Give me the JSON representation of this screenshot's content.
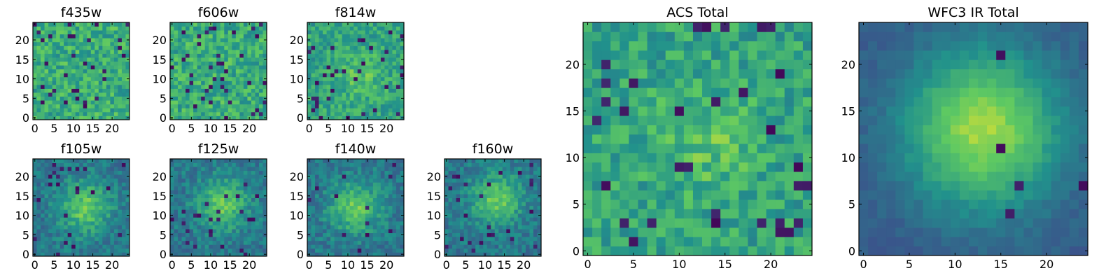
{
  "chart_data": [
    {
      "type": "heatmap",
      "title": "f435w",
      "grid_size": 25,
      "pattern": "noise",
      "center": [
        12,
        12
      ],
      "xlim": [
        0,
        24
      ],
      "ylim": [
        0,
        24
      ],
      "xticks": [
        "0",
        "5",
        "10",
        "15",
        "20"
      ],
      "yticks": [
        "0",
        "5",
        "10",
        "15",
        "20"
      ]
    },
    {
      "type": "heatmap",
      "title": "f606w",
      "grid_size": 25,
      "pattern": "noise",
      "center": [
        12,
        12
      ],
      "xlim": [
        0,
        24
      ],
      "ylim": [
        0,
        24
      ],
      "xticks": [
        "0",
        "5",
        "10",
        "15",
        "20"
      ],
      "yticks": [
        "0",
        "5",
        "10",
        "15",
        "20"
      ]
    },
    {
      "type": "heatmap",
      "title": "f814w",
      "grid_size": 25,
      "pattern": "weak_source",
      "center": [
        13,
        11
      ],
      "xlim": [
        0,
        24
      ],
      "ylim": [
        0,
        24
      ],
      "xticks": [
        "0",
        "5",
        "10",
        "15",
        "20"
      ],
      "yticks": [
        "0",
        "5",
        "10",
        "15",
        "20"
      ]
    },
    {
      "type": "heatmap",
      "title": "f105w",
      "grid_size": 25,
      "pattern": "source",
      "center": [
        13,
        12
      ],
      "xlim": [
        0,
        24
      ],
      "ylim": [
        0,
        24
      ],
      "xticks": [
        "0",
        "5",
        "10",
        "15",
        "20"
      ],
      "yticks": [
        "0",
        "5",
        "10",
        "15",
        "20"
      ]
    },
    {
      "type": "heatmap",
      "title": "f125w",
      "grid_size": 25,
      "pattern": "source",
      "center": [
        13,
        13
      ],
      "xlim": [
        0,
        24
      ],
      "ylim": [
        0,
        24
      ],
      "xticks": [
        "0",
        "5",
        "10",
        "15",
        "20"
      ],
      "yticks": [
        "0",
        "5",
        "10",
        "15",
        "20"
      ]
    },
    {
      "type": "heatmap",
      "title": "f140w",
      "grid_size": 25,
      "pattern": "source",
      "center": [
        12,
        12
      ],
      "xlim": [
        0,
        24
      ],
      "ylim": [
        0,
        24
      ],
      "xticks": [
        "0",
        "5",
        "10",
        "15",
        "20"
      ],
      "yticks": [
        "0",
        "5",
        "10",
        "15",
        "20"
      ]
    },
    {
      "type": "heatmap",
      "title": "f160w",
      "grid_size": 25,
      "pattern": "source",
      "center": [
        13,
        14
      ],
      "xlim": [
        0,
        24
      ],
      "ylim": [
        0,
        24
      ],
      "xticks": [
        "0",
        "5",
        "10",
        "15",
        "20"
      ],
      "yticks": [
        "0",
        "5",
        "10",
        "15",
        "20"
      ]
    },
    {
      "type": "heatmap",
      "title": "ACS Total",
      "grid_size": 25,
      "pattern": "weak_source",
      "center": [
        13,
        12
      ],
      "xlim": [
        0,
        24
      ],
      "ylim": [
        0,
        24
      ],
      "xticks": [
        "0",
        "5",
        "10",
        "15",
        "20"
      ],
      "yticks": [
        "0",
        "5",
        "10",
        "15",
        "20"
      ]
    },
    {
      "type": "heatmap",
      "title": "WFC3 IR Total",
      "grid_size": 25,
      "pattern": "strong_source",
      "center": [
        13,
        13
      ],
      "xlim": [
        0,
        24
      ],
      "ylim": [
        0,
        24
      ],
      "xticks": [
        "0",
        "5",
        "10",
        "15",
        "20"
      ],
      "yticks": [
        "0",
        "5",
        "10",
        "15",
        "20"
      ]
    }
  ],
  "colormap": [
    "#440154",
    "#3b528b",
    "#21918c",
    "#5ec962",
    "#fde725"
  ]
}
